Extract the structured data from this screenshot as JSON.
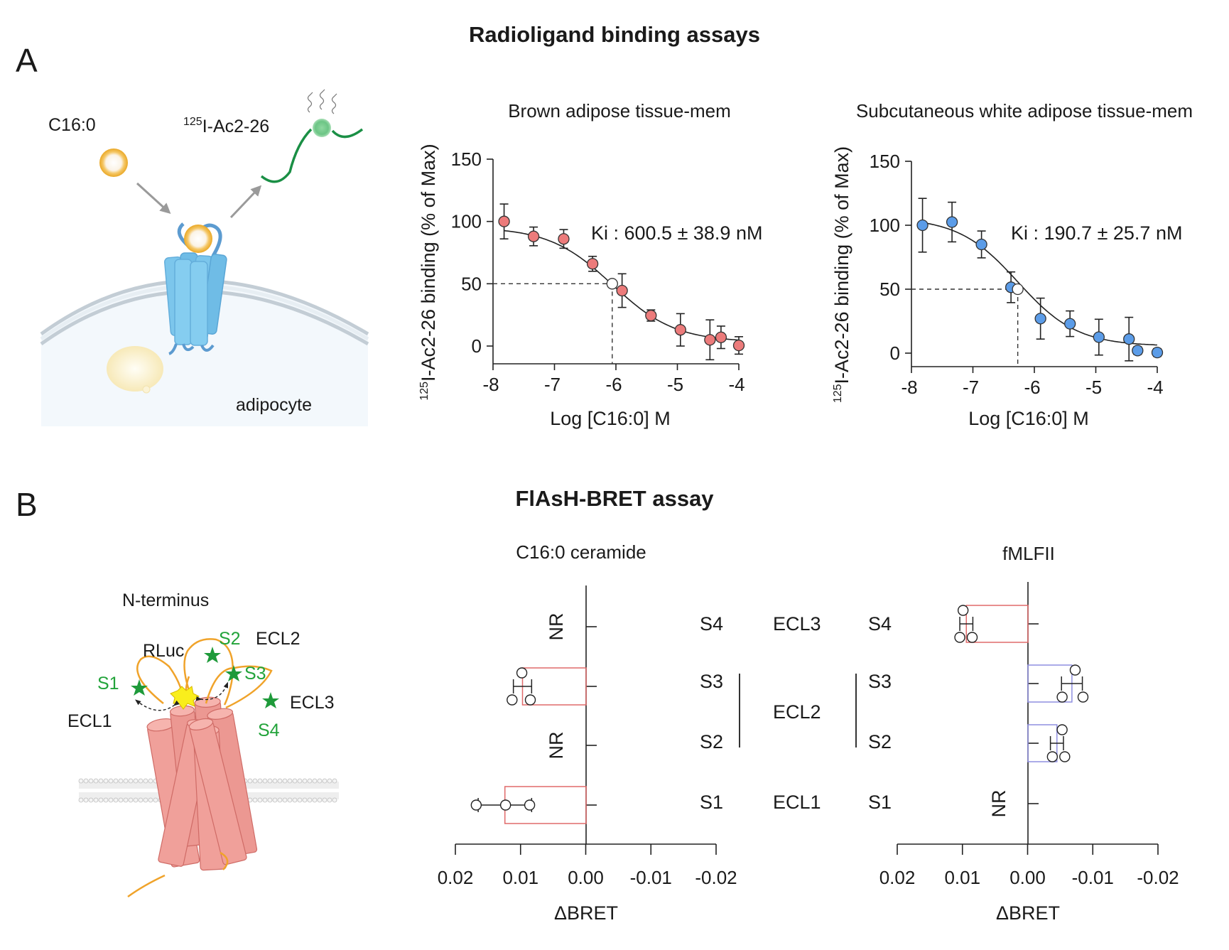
{
  "figure": {
    "panel_a_letter": "A",
    "panel_b_letter": "B",
    "panel_a_title": "Radioligand binding assays",
    "panel_b_title": "FlAsH-BRET assay"
  },
  "diagram_a": {
    "ligand_label": "C16:0",
    "radioligand_sup": "125",
    "radioligand_label": "I-Ac2-26",
    "cell_label": "adipocyte",
    "colors": {
      "ligand": "#f2b530",
      "radioligand": "#1a8f45",
      "receptor": "#7cc6ec",
      "cell": "#f3f8fc",
      "membrane": "#c7d2da",
      "lipid_droplet": "#fbefc4",
      "arrow": "#9a9a9a"
    }
  },
  "diagram_b": {
    "n_terminus_label": "N-terminus",
    "rluc_label": "RLuc",
    "ecl1_label": "ECL1",
    "ecl2_label": "ECL2",
    "ecl3_label": "ECL3",
    "sites": [
      "S1",
      "S2",
      "S3",
      "S4"
    ],
    "colors": {
      "helix": "#f0a09a",
      "helix_edge": "#cf6b66",
      "loop": "#f0a32a",
      "site_star": "#1e9a3a",
      "rluc": "#f9ee1c",
      "membrane": "#cfcfcf"
    }
  },
  "chart_data": [
    {
      "id": "bat",
      "type": "scatter",
      "title": "Brown adipose tissue-mem",
      "xlabel": "Log [C16:0] M",
      "ylabel_sup": "125",
      "ylabel": "I-Ac2-26 binding (% of Max)",
      "xlim": [
        -8,
        -4
      ],
      "ylim": [
        0,
        150
      ],
      "xticks": [
        -8,
        -7,
        -6,
        -5,
        -4
      ],
      "xtick_labels": [
        "-8",
        "-7",
        "-6",
        "-5",
        "-4"
      ],
      "yticks": [
        0,
        50,
        100,
        150
      ],
      "ytick_labels": [
        "0",
        "50",
        "100",
        "150"
      ],
      "annotation": "Ki : 600.5 ± 38.9 nM",
      "marker_color": "#ec7b7b",
      "points": [
        {
          "x": -7.82,
          "y": 100,
          "err": 14
        },
        {
          "x": -7.34,
          "y": 88,
          "err": 7.5
        },
        {
          "x": -6.85,
          "y": 86,
          "err": 7.5
        },
        {
          "x": -6.38,
          "y": 66,
          "err": 6
        },
        {
          "x": -5.9,
          "y": 44.5,
          "err": 13.5
        },
        {
          "x": -5.43,
          "y": 24.5,
          "err": 4.5
        },
        {
          "x": -4.95,
          "y": 13,
          "err": 13
        },
        {
          "x": -4.47,
          "y": 5,
          "err": 16
        },
        {
          "x": -4.29,
          "y": 7,
          "err": 9
        },
        {
          "x": -4.0,
          "y": 0.5,
          "err": 7
        }
      ],
      "half_max": {
        "x": -6.06,
        "y": 50
      },
      "fit": {
        "top": 95.5,
        "bottom": 3.2,
        "logIC50": -6.06,
        "hill": -0.85
      }
    },
    {
      "id": "swat",
      "type": "scatter",
      "title": "Subcutaneous white adipose tissue-mem",
      "xlabel": "Log [C16:0] M",
      "ylabel_sup": "125",
      "ylabel": "I-Ac2-26 binding (% of Max)",
      "xlim": [
        -8,
        -4
      ],
      "ylim": [
        0,
        150
      ],
      "xticks": [
        -8,
        -7,
        -6,
        -5,
        -4
      ],
      "xtick_labels": [
        "-8",
        "-7",
        "-6",
        "-5",
        "-4"
      ],
      "yticks": [
        0,
        50,
        100,
        150
      ],
      "ytick_labels": [
        "0",
        "50",
        "100",
        "150"
      ],
      "annotation": "Ki : 190.7 ± 25.7 nM",
      "marker_color": "#5b9ce8",
      "points": [
        {
          "x": -7.82,
          "y": 100,
          "err": 21
        },
        {
          "x": -7.34,
          "y": 102.5,
          "err": 15.5
        },
        {
          "x": -6.86,
          "y": 85,
          "err": 10.5
        },
        {
          "x": -6.38,
          "y": 51.5,
          "err": 12
        },
        {
          "x": -5.9,
          "y": 27,
          "err": 16
        },
        {
          "x": -5.42,
          "y": 23,
          "err": 10
        },
        {
          "x": -4.95,
          "y": 12.5,
          "err": 14
        },
        {
          "x": -4.46,
          "y": 11,
          "err": 17
        },
        {
          "x": -4.32,
          "y": 2,
          "err": 3
        },
        {
          "x": -4.0,
          "y": 0.5,
          "err": 3
        }
      ],
      "half_max": {
        "x": -6.27,
        "y": 50
      },
      "fit": {
        "top": 106,
        "bottom": 5.5,
        "logIC50": -6.27,
        "hill": -0.9
      }
    },
    {
      "id": "ceramide",
      "type": "bar",
      "orientation": "horizontal",
      "title": "C16:0 ceramide",
      "xlabel": "ΔBRET",
      "xlim": [
        0.02,
        -0.02
      ],
      "xticks": [
        0.02,
        0.01,
        0.0,
        -0.01,
        -0.02
      ],
      "xtick_labels": [
        "0.02",
        "0.01",
        "0.00",
        "-0.01",
        "-0.02"
      ],
      "categories": [
        "S4",
        "S3",
        "S2",
        "S1"
      ],
      "bar_color": "#e06a6a",
      "bars": [
        {
          "site": "S4",
          "value": null,
          "note": "NR",
          "points": []
        },
        {
          "site": "S3",
          "value": 0.0097,
          "err": 0.0014,
          "note": "",
          "points": [
            0.0098,
            0.0113,
            0.0085
          ]
        },
        {
          "site": "S2",
          "value": null,
          "note": "NR",
          "points": []
        },
        {
          "site": "S1",
          "value": 0.0124,
          "err": 0.0041,
          "note": "",
          "points": [
            0.0168,
            0.0123,
            0.0086
          ]
        }
      ]
    },
    {
      "id": "fmlfii",
      "type": "bar",
      "orientation": "horizontal",
      "title": "fMLFII",
      "xlabel": "ΔBRET",
      "xlim": [
        0.02,
        -0.02
      ],
      "xticks": [
        0.02,
        0.01,
        0.0,
        -0.01,
        -0.02
      ],
      "xtick_labels": [
        "0.02",
        "0.01",
        "0.00",
        "-0.01",
        "-0.02"
      ],
      "categories": [
        "S4",
        "S3",
        "S2",
        "S1"
      ],
      "bars": [
        {
          "site": "S4",
          "value": 0.0094,
          "err": 0.001,
          "color": "#e06a6a",
          "note": "",
          "points": [
            0.0099,
            0.0104,
            0.0085
          ]
        },
        {
          "site": "S3",
          "value": -0.0068,
          "err": 0.0016,
          "color": "#8f8fe0",
          "note": "",
          "points": [
            -0.0073,
            -0.0053,
            -0.0085
          ]
        },
        {
          "site": "S2",
          "value": -0.0045,
          "err": 0.001,
          "color": "#8f8fe0",
          "note": "",
          "points": [
            -0.0053,
            -0.0038,
            -0.0057
          ]
        },
        {
          "site": "S1",
          "value": null,
          "note": "NR",
          "points": []
        }
      ]
    }
  ],
  "middle_labels": {
    "left_sites": [
      "S4",
      "S3",
      "S2",
      "S1"
    ],
    "loops": [
      "ECL3",
      "ECL2",
      "ECL1"
    ],
    "right_sites": [
      "S4",
      "S3",
      "S2",
      "S1"
    ]
  }
}
